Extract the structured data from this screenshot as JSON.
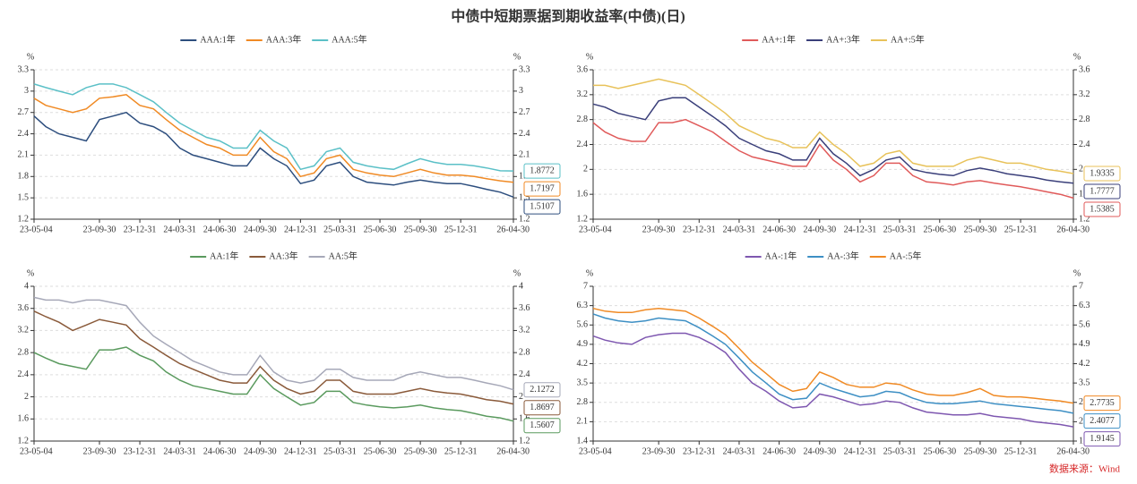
{
  "title": "中债中短期票据到期收益率(中债)(日)",
  "source": "数据来源：Wind",
  "chart_data": [
    {
      "type": "line",
      "y_unit": "%",
      "grid": true,
      "ylim": [
        1.2,
        3.3
      ],
      "yticks": [
        1.2,
        1.5,
        1.8,
        2.1,
        2.4,
        2.7,
        3,
        3.3
      ],
      "xticks": [
        "23-05-04",
        "23-09-30",
        "23-12-31",
        "24-03-31",
        "24-06-30",
        "24-09-30",
        "24-12-31",
        "25-03-31",
        "25-06-30",
        "25-09-30",
        "25-12-31",
        "26-04-30"
      ],
      "x": [
        "23-05-04",
        "23-05-31",
        "23-06-30",
        "23-07-31",
        "23-08-31",
        "23-09-30",
        "23-10-31",
        "23-11-30",
        "23-12-31",
        "24-01-31",
        "24-02-29",
        "24-03-31",
        "24-04-30",
        "24-05-31",
        "24-06-30",
        "24-07-31",
        "24-08-31",
        "24-09-30",
        "24-10-31",
        "24-11-30",
        "24-12-31",
        "25-01-31",
        "25-02-28",
        "25-03-31",
        "25-04-30",
        "25-05-31",
        "25-06-30",
        "25-07-31",
        "25-08-31",
        "25-09-30",
        "25-10-31",
        "25-11-30",
        "25-12-31",
        "26-01-31",
        "26-02-28",
        "26-03-31",
        "26-04-30"
      ],
      "series": [
        {
          "name": "AAA:1年",
          "color": "#2d4e7e",
          "values": [
            2.65,
            2.5,
            2.4,
            2.35,
            2.3,
            2.6,
            2.65,
            2.7,
            2.55,
            2.5,
            2.4,
            2.2,
            2.1,
            2.05,
            2.0,
            1.95,
            1.95,
            2.2,
            2.05,
            1.95,
            1.7,
            1.75,
            1.95,
            2.0,
            1.8,
            1.72,
            1.7,
            1.68,
            1.72,
            1.75,
            1.72,
            1.7,
            1.7,
            1.66,
            1.62,
            1.58,
            1.5107
          ]
        },
        {
          "name": "AAA:3年",
          "color": "#f08a24",
          "values": [
            2.9,
            2.8,
            2.75,
            2.7,
            2.75,
            2.9,
            2.92,
            2.95,
            2.8,
            2.75,
            2.6,
            2.45,
            2.35,
            2.25,
            2.2,
            2.1,
            2.1,
            2.35,
            2.15,
            2.05,
            1.8,
            1.85,
            2.05,
            2.1,
            1.9,
            1.85,
            1.82,
            1.8,
            1.85,
            1.9,
            1.85,
            1.82,
            1.82,
            1.8,
            1.77,
            1.74,
            1.7197
          ]
        },
        {
          "name": "AAA:5年",
          "color": "#5bc0c7",
          "values": [
            3.1,
            3.05,
            3.0,
            2.95,
            3.05,
            3.1,
            3.1,
            3.05,
            2.95,
            2.85,
            2.7,
            2.55,
            2.45,
            2.35,
            2.3,
            2.2,
            2.2,
            2.45,
            2.3,
            2.2,
            1.9,
            1.95,
            2.15,
            2.2,
            2.0,
            1.95,
            1.92,
            1.9,
            1.98,
            2.05,
            2.0,
            1.97,
            1.97,
            1.95,
            1.92,
            1.88,
            1.8772
          ]
        }
      ]
    },
    {
      "type": "line",
      "y_unit": "%",
      "grid": true,
      "ylim": [
        1.2,
        3.6
      ],
      "yticks": [
        1.2,
        1.6,
        2,
        2.4,
        2.8,
        3.2,
        3.6
      ],
      "xticks": [
        "23-05-04",
        "23-09-30",
        "23-12-31",
        "24-03-31",
        "24-06-30",
        "24-09-30",
        "24-12-31",
        "25-03-31",
        "25-06-30",
        "25-09-30",
        "25-12-31",
        "26-04-30"
      ],
      "x": [
        "23-05-04",
        "23-05-31",
        "23-06-30",
        "23-07-31",
        "23-08-31",
        "23-09-30",
        "23-10-31",
        "23-11-30",
        "23-12-31",
        "24-01-31",
        "24-02-29",
        "24-03-31",
        "24-04-30",
        "24-05-31",
        "24-06-30",
        "24-07-31",
        "24-08-31",
        "24-09-30",
        "24-10-31",
        "24-11-30",
        "24-12-31",
        "25-01-31",
        "25-02-28",
        "25-03-31",
        "25-04-30",
        "25-05-31",
        "25-06-30",
        "25-07-31",
        "25-08-31",
        "25-09-30",
        "25-10-31",
        "25-11-30",
        "25-12-31",
        "26-01-31",
        "26-02-28",
        "26-03-31",
        "26-04-30"
      ],
      "series": [
        {
          "name": "AA+:1年",
          "color": "#e05a5a",
          "values": [
            2.75,
            2.6,
            2.5,
            2.45,
            2.45,
            2.75,
            2.75,
            2.8,
            2.7,
            2.6,
            2.45,
            2.3,
            2.2,
            2.15,
            2.1,
            2.05,
            2.05,
            2.4,
            2.15,
            2.0,
            1.8,
            1.9,
            2.1,
            2.1,
            1.9,
            1.8,
            1.78,
            1.75,
            1.8,
            1.82,
            1.78,
            1.75,
            1.72,
            1.68,
            1.64,
            1.6,
            1.5385
          ]
        },
        {
          "name": "AA+:3年",
          "color": "#3a3f7a",
          "values": [
            3.05,
            3.0,
            2.9,
            2.85,
            2.8,
            3.1,
            3.15,
            3.15,
            3.0,
            2.85,
            2.7,
            2.5,
            2.4,
            2.3,
            2.25,
            2.15,
            2.15,
            2.5,
            2.25,
            2.1,
            1.9,
            2.0,
            2.15,
            2.2,
            2.0,
            1.95,
            1.92,
            1.9,
            1.98,
            2.02,
            1.98,
            1.93,
            1.9,
            1.87,
            1.83,
            1.8,
            1.7777
          ]
        },
        {
          "name": "AA+:5年",
          "color": "#e8c25a",
          "values": [
            3.35,
            3.35,
            3.3,
            3.35,
            3.4,
            3.45,
            3.4,
            3.35,
            3.2,
            3.05,
            2.9,
            2.7,
            2.6,
            2.5,
            2.45,
            2.35,
            2.35,
            2.6,
            2.4,
            2.25,
            2.05,
            2.1,
            2.25,
            2.3,
            2.1,
            2.05,
            2.05,
            2.05,
            2.15,
            2.2,
            2.15,
            2.1,
            2.1,
            2.05,
            2.0,
            1.97,
            1.9335
          ]
        }
      ]
    },
    {
      "type": "line",
      "y_unit": "%",
      "grid": true,
      "ylim": [
        1.2,
        4
      ],
      "yticks": [
        1.2,
        1.6,
        2,
        2.4,
        2.8,
        3.2,
        3.6,
        4
      ],
      "xticks": [
        "23-05-04",
        "23-09-30",
        "23-12-31",
        "24-03-31",
        "24-06-30",
        "24-09-30",
        "24-12-31",
        "25-03-31",
        "25-06-30",
        "25-09-30",
        "25-12-31",
        "26-04-30"
      ],
      "x": [
        "23-05-04",
        "23-05-31",
        "23-06-30",
        "23-07-31",
        "23-08-31",
        "23-09-30",
        "23-10-31",
        "23-11-30",
        "23-12-31",
        "24-01-31",
        "24-02-29",
        "24-03-31",
        "24-04-30",
        "24-05-31",
        "24-06-30",
        "24-07-31",
        "24-08-31",
        "24-09-30",
        "24-10-31",
        "24-11-30",
        "24-12-31",
        "25-01-31",
        "25-02-28",
        "25-03-31",
        "25-04-30",
        "25-05-31",
        "25-06-30",
        "25-07-31",
        "25-08-31",
        "25-09-30",
        "25-10-31",
        "25-11-30",
        "25-12-31",
        "26-01-31",
        "26-02-28",
        "26-03-31",
        "26-04-30"
      ],
      "series": [
        {
          "name": "AA:1年",
          "color": "#5a9a5e",
          "values": [
            2.8,
            2.7,
            2.6,
            2.55,
            2.5,
            2.85,
            2.85,
            2.9,
            2.75,
            2.65,
            2.45,
            2.3,
            2.2,
            2.15,
            2.1,
            2.05,
            2.05,
            2.4,
            2.15,
            2.0,
            1.85,
            1.9,
            2.1,
            2.1,
            1.9,
            1.85,
            1.82,
            1.8,
            1.82,
            1.85,
            1.8,
            1.77,
            1.75,
            1.7,
            1.65,
            1.62,
            1.5607
          ]
        },
        {
          "name": "AA:3年",
          "color": "#8a5a3a",
          "values": [
            3.55,
            3.45,
            3.35,
            3.2,
            3.3,
            3.4,
            3.35,
            3.3,
            3.05,
            2.9,
            2.75,
            2.6,
            2.5,
            2.4,
            2.3,
            2.25,
            2.25,
            2.55,
            2.3,
            2.15,
            2.05,
            2.1,
            2.3,
            2.3,
            2.1,
            2.05,
            2.05,
            2.05,
            2.1,
            2.15,
            2.1,
            2.07,
            2.05,
            2.0,
            1.95,
            1.92,
            1.8697
          ]
        },
        {
          "name": "AA:5年",
          "color": "#a6a8b8",
          "values": [
            3.8,
            3.75,
            3.75,
            3.7,
            3.75,
            3.75,
            3.7,
            3.65,
            3.35,
            3.1,
            2.95,
            2.8,
            2.65,
            2.55,
            2.45,
            2.4,
            2.4,
            2.75,
            2.45,
            2.3,
            2.25,
            2.3,
            2.5,
            2.5,
            2.35,
            2.3,
            2.3,
            2.3,
            2.4,
            2.45,
            2.4,
            2.35,
            2.35,
            2.3,
            2.25,
            2.2,
            2.1272
          ]
        }
      ]
    },
    {
      "type": "line",
      "y_unit": "%",
      "grid": true,
      "ylim": [
        1.4,
        7
      ],
      "yticks": [
        1.4,
        2.1,
        2.8,
        3.5,
        4.2,
        4.9,
        5.6,
        6.3,
        7
      ],
      "xticks": [
        "23-05-04",
        "23-09-30",
        "23-12-31",
        "24-03-31",
        "24-06-30",
        "24-09-30",
        "24-12-31",
        "25-03-31",
        "25-06-30",
        "25-09-30",
        "25-12-31",
        "26-04-30"
      ],
      "x": [
        "23-05-04",
        "23-05-31",
        "23-06-30",
        "23-07-31",
        "23-08-31",
        "23-09-30",
        "23-10-31",
        "23-11-30",
        "23-12-31",
        "24-01-31",
        "24-02-29",
        "24-03-31",
        "24-04-30",
        "24-05-31",
        "24-06-30",
        "24-07-31",
        "24-08-31",
        "24-09-30",
        "24-10-31",
        "24-11-30",
        "24-12-31",
        "25-01-31",
        "25-02-28",
        "25-03-31",
        "25-04-30",
        "25-05-31",
        "25-06-30",
        "25-07-31",
        "25-08-31",
        "25-09-30",
        "25-10-31",
        "25-11-30",
        "25-12-31",
        "26-01-31",
        "26-02-28",
        "26-03-31",
        "26-04-30"
      ],
      "series": [
        {
          "name": "AA-:1年",
          "color": "#7e57b0",
          "values": [
            5.2,
            5.05,
            4.95,
            4.9,
            5.15,
            5.25,
            5.3,
            5.3,
            5.15,
            4.9,
            4.6,
            4.0,
            3.5,
            3.2,
            2.85,
            2.6,
            2.65,
            3.1,
            3.0,
            2.85,
            2.7,
            2.75,
            2.85,
            2.8,
            2.6,
            2.45,
            2.4,
            2.35,
            2.35,
            2.4,
            2.3,
            2.25,
            2.2,
            2.1,
            2.05,
            2.0,
            1.9145
          ]
        },
        {
          "name": "AA-:3年",
          "color": "#3d8fc4",
          "values": [
            6.0,
            5.85,
            5.75,
            5.7,
            5.75,
            5.85,
            5.8,
            5.75,
            5.5,
            5.2,
            4.9,
            4.4,
            3.9,
            3.5,
            3.1,
            2.9,
            2.95,
            3.5,
            3.3,
            3.15,
            3.0,
            3.05,
            3.2,
            3.15,
            2.95,
            2.8,
            2.75,
            2.75,
            2.8,
            2.85,
            2.75,
            2.7,
            2.65,
            2.6,
            2.55,
            2.5,
            2.4077
          ]
        },
        {
          "name": "AA-:5年",
          "color": "#f08a24",
          "values": [
            6.2,
            6.1,
            6.05,
            6.05,
            6.15,
            6.2,
            6.15,
            6.1,
            5.85,
            5.55,
            5.25,
            4.75,
            4.25,
            3.85,
            3.45,
            3.2,
            3.3,
            3.9,
            3.7,
            3.45,
            3.35,
            3.35,
            3.5,
            3.45,
            3.25,
            3.1,
            3.05,
            3.05,
            3.15,
            3.3,
            3.05,
            3.0,
            3.0,
            2.95,
            2.9,
            2.85,
            2.7735
          ]
        }
      ]
    }
  ]
}
